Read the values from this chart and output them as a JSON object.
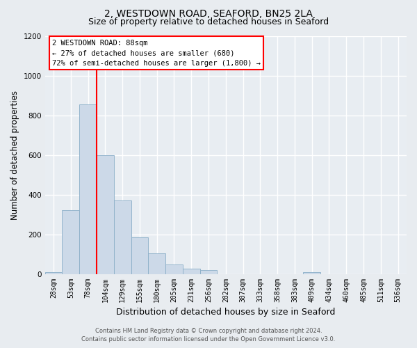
{
  "title": "2, WESTDOWN ROAD, SEAFORD, BN25 2LA",
  "subtitle": "Size of property relative to detached houses in Seaford",
  "xlabel": "Distribution of detached houses by size in Seaford",
  "ylabel": "Number of detached properties",
  "footer_line1": "Contains HM Land Registry data © Crown copyright and database right 2024.",
  "footer_line2": "Contains public sector information licensed under the Open Government Licence v3.0.",
  "bar_labels": [
    "28sqm",
    "53sqm",
    "78sqm",
    "104sqm",
    "129sqm",
    "155sqm",
    "180sqm",
    "205sqm",
    "231sqm",
    "256sqm",
    "282sqm",
    "307sqm",
    "333sqm",
    "358sqm",
    "383sqm",
    "409sqm",
    "434sqm",
    "460sqm",
    "485sqm",
    "511sqm",
    "536sqm"
  ],
  "bar_values": [
    10,
    320,
    855,
    600,
    370,
    185,
    105,
    47,
    25,
    20,
    0,
    0,
    0,
    0,
    0,
    10,
    0,
    0,
    0,
    0,
    0
  ],
  "bar_color": "#ccd9e8",
  "bar_edgecolor": "#8aaec8",
  "ylim": [
    0,
    1200
  ],
  "yticks": [
    0,
    200,
    400,
    600,
    800,
    1000,
    1200
  ],
  "redline_bar_index": 2,
  "annotation_title": "2 WESTDOWN ROAD: 88sqm",
  "annotation_line2": "← 27% of detached houses are smaller (680)",
  "annotation_line3": "72% of semi-detached houses are larger (1,800) →",
  "background_color": "#e8ecf0",
  "plot_background": "#e8edf2",
  "grid_color": "#ffffff",
  "title_fontsize": 10,
  "subtitle_fontsize": 9,
  "axis_label_fontsize": 8.5,
  "tick_fontsize": 7,
  "annotation_fontsize": 7.5,
  "footer_fontsize": 6
}
